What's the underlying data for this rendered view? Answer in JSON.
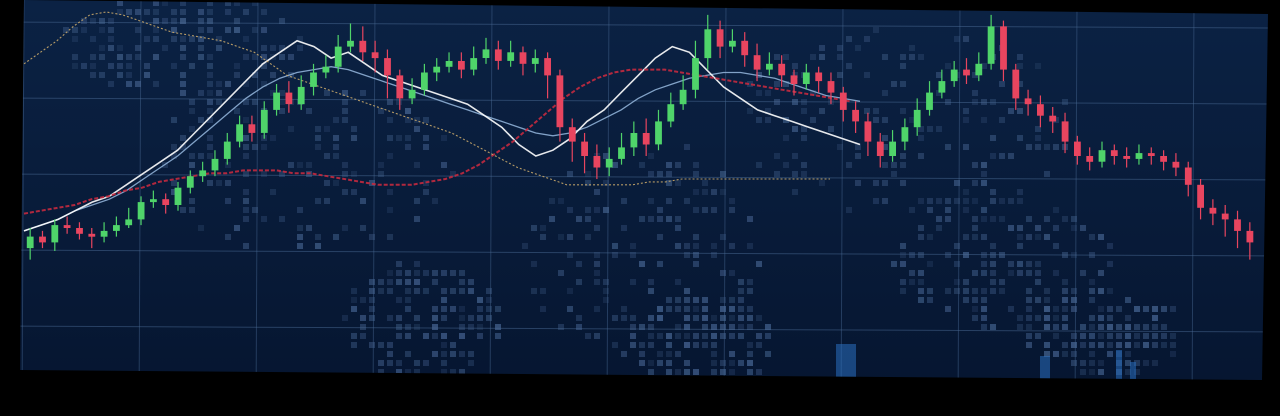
{
  "colors": {
    "background": "#0b2244",
    "background_edge": "#061631",
    "grid": "#4a6a94",
    "bull": "#4fd46a",
    "bear": "#e8455f",
    "white_line": "#ffffff",
    "blue_line": "#8fb0d6",
    "ma_line": "#c42a3f",
    "gold_line": "#c9a96a",
    "map_dots": "#3a5680",
    "volume": "#2a70c0"
  },
  "chart_data": {
    "type": "candlestick",
    "title": "",
    "xlabel": "",
    "ylabel": "",
    "ylim": [
      0,
      100
    ],
    "grid": true,
    "candles": [
      [
        18,
        22,
        25,
        14
      ],
      [
        22,
        20,
        24,
        18
      ],
      [
        20,
        26,
        28,
        17
      ],
      [
        26,
        25,
        29,
        23
      ],
      [
        25,
        23,
        27,
        21
      ],
      [
        23,
        22,
        25,
        18
      ],
      [
        22,
        24,
        27,
        20
      ],
      [
        24,
        26,
        29,
        22
      ],
      [
        26,
        28,
        32,
        25
      ],
      [
        28,
        34,
        36,
        26
      ],
      [
        34,
        35,
        38,
        32
      ],
      [
        35,
        33,
        37,
        30
      ],
      [
        33,
        39,
        41,
        31
      ],
      [
        39,
        43,
        45,
        37
      ],
      [
        43,
        45,
        48,
        41
      ],
      [
        45,
        49,
        52,
        43
      ],
      [
        49,
        55,
        58,
        47
      ],
      [
        55,
        61,
        64,
        53
      ],
      [
        61,
        58,
        64,
        55
      ],
      [
        58,
        66,
        69,
        56
      ],
      [
        66,
        72,
        75,
        64
      ],
      [
        72,
        68,
        76,
        65
      ],
      [
        68,
        74,
        78,
        66
      ],
      [
        74,
        79,
        82,
        71
      ],
      [
        79,
        81,
        85,
        77
      ],
      [
        81,
        88,
        92,
        79
      ],
      [
        88,
        90,
        96,
        86
      ],
      [
        90,
        86,
        95,
        83
      ],
      [
        86,
        84,
        90,
        79
      ],
      [
        84,
        78,
        87,
        70
      ],
      [
        78,
        70,
        80,
        66
      ],
      [
        70,
        73,
        77,
        68
      ],
      [
        73,
        79,
        82,
        71
      ],
      [
        79,
        81,
        84,
        76
      ],
      [
        81,
        83,
        86,
        79
      ],
      [
        83,
        80,
        86,
        77
      ],
      [
        80,
        84,
        88,
        78
      ],
      [
        84,
        87,
        91,
        82
      ],
      [
        87,
        83,
        90,
        80
      ],
      [
        83,
        86,
        90,
        81
      ],
      [
        86,
        82,
        88,
        78
      ],
      [
        82,
        84,
        87,
        79
      ],
      [
        84,
        78,
        86,
        70
      ],
      [
        78,
        60,
        80,
        55
      ],
      [
        60,
        55,
        63,
        48
      ],
      [
        55,
        50,
        58,
        44
      ],
      [
        50,
        46,
        54,
        42
      ],
      [
        46,
        49,
        53,
        43
      ],
      [
        49,
        53,
        58,
        47
      ],
      [
        53,
        58,
        62,
        50
      ],
      [
        58,
        54,
        63,
        50
      ],
      [
        54,
        62,
        66,
        52
      ],
      [
        62,
        68,
        72,
        60
      ],
      [
        68,
        73,
        78,
        66
      ],
      [
        73,
        84,
        90,
        70
      ],
      [
        84,
        94,
        99,
        80
      ],
      [
        94,
        88,
        97,
        84
      ],
      [
        88,
        90,
        94,
        86
      ],
      [
        90,
        85,
        93,
        81
      ],
      [
        85,
        80,
        89,
        76
      ],
      [
        80,
        82,
        86,
        78
      ],
      [
        82,
        78,
        85,
        74
      ],
      [
        78,
        75,
        80,
        71
      ],
      [
        75,
        79,
        82,
        73
      ],
      [
        79,
        76,
        81,
        72
      ],
      [
        76,
        72,
        79,
        68
      ],
      [
        72,
        66,
        74,
        62
      ],
      [
        66,
        62,
        69,
        58
      ],
      [
        62,
        55,
        65,
        50
      ],
      [
        55,
        50,
        58,
        46
      ],
      [
        50,
        55,
        59,
        48
      ],
      [
        55,
        60,
        63,
        52
      ],
      [
        60,
        66,
        70,
        57
      ],
      [
        66,
        72,
        76,
        64
      ],
      [
        72,
        76,
        80,
        70
      ],
      [
        76,
        80,
        83,
        74
      ],
      [
        80,
        78,
        84,
        75
      ],
      [
        78,
        82,
        86,
        76
      ],
      [
        82,
        95,
        99,
        80
      ],
      [
        95,
        80,
        97,
        76
      ],
      [
        80,
        70,
        82,
        66
      ],
      [
        70,
        68,
        73,
        64
      ],
      [
        68,
        64,
        71,
        60
      ],
      [
        64,
        62,
        67,
        58
      ],
      [
        62,
        55,
        65,
        51
      ],
      [
        55,
        50,
        57,
        47
      ],
      [
        50,
        48,
        53,
        45
      ],
      [
        48,
        52,
        55,
        46
      ],
      [
        52,
        50,
        54,
        47
      ],
      [
        50,
        49,
        53,
        46
      ],
      [
        49,
        51,
        54,
        47
      ],
      [
        51,
        50,
        53,
        47
      ],
      [
        50,
        48,
        52,
        45
      ],
      [
        48,
        46,
        51,
        43
      ],
      [
        46,
        40,
        48,
        36
      ],
      [
        40,
        32,
        42,
        28
      ],
      [
        32,
        30,
        35,
        26
      ],
      [
        30,
        28,
        33,
        22
      ],
      [
        28,
        24,
        31,
        18
      ],
      [
        24,
        20,
        27,
        14
      ]
    ],
    "series": [
      {
        "values": [
          24,
          26,
          28,
          31,
          33,
          35,
          38,
          42,
          46,
          50,
          55,
          60,
          65,
          70,
          74,
          77,
          79,
          80,
          81,
          80,
          78,
          76,
          74,
          72,
          70,
          68,
          66,
          64,
          62,
          60,
          58,
          57,
          58,
          60,
          63,
          66,
          70,
          73,
          75,
          77,
          78,
          79,
          79,
          78,
          77,
          75,
          73,
          71,
          70,
          69
        ]
      },
      {
        "values": [
          24,
          26,
          28,
          31,
          34,
          36,
          40,
          44,
          48,
          52,
          58,
          64,
          70,
          76,
          82,
          86,
          90,
          88,
          84,
          86,
          82,
          78,
          76,
          74,
          72,
          70,
          68,
          64,
          60,
          54,
          50,
          52,
          56,
          62,
          66,
          72,
          78,
          84,
          88,
          86,
          80,
          74,
          70,
          66,
          64,
          62,
          60,
          58,
          56,
          54
        ]
      },
      {
        "values": [
          30,
          31,
          32,
          33,
          35,
          36,
          38,
          39,
          41,
          42,
          43,
          44,
          44,
          45,
          45,
          45,
          44,
          44,
          43,
          42,
          41,
          40,
          40,
          40,
          41,
          42,
          44,
          47,
          51,
          55,
          60,
          65,
          70,
          74,
          77,
          79,
          80,
          80,
          80,
          79,
          78,
          77,
          76,
          75,
          74,
          73,
          72,
          71,
          70,
          69
        ]
      },
      {
        "values": [
          82,
          86,
          90,
          95,
          99,
          100,
          99,
          97,
          95,
          93,
          92,
          91,
          90,
          88,
          86,
          82,
          78,
          76,
          74,
          72,
          70,
          68,
          66,
          64,
          62,
          60,
          58,
          55,
          52,
          49,
          46,
          44,
          42,
          40,
          40,
          40,
          40,
          40,
          41,
          41,
          42,
          42,
          42,
          42,
          42,
          42,
          42,
          42,
          42,
          42
        ]
      }
    ]
  }
}
